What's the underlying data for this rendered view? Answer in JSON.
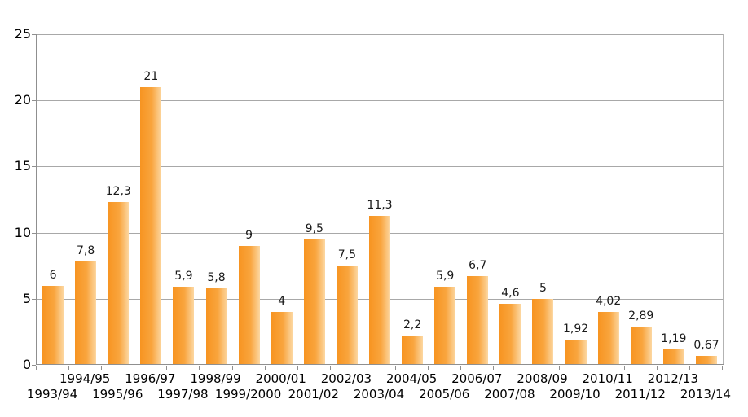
{
  "chart_data": {
    "type": "bar",
    "title": "",
    "xlabel": "",
    "ylabel": "",
    "categories": [
      "1993/94",
      "1994/95",
      "1995/96",
      "1996/97",
      "1997/98",
      "1998/99",
      "1999/2000",
      "2000/01",
      "2001/02",
      "2002/03",
      "2003/04",
      "2004/05",
      "2005/06",
      "2006/07",
      "2007/08",
      "2008/09",
      "2009/10",
      "2010/11",
      "2011/12",
      "2012/13",
      "2013/14"
    ],
    "values": [
      6,
      7.8,
      12.3,
      21,
      5.9,
      5.8,
      9,
      4,
      9.5,
      7.5,
      11.3,
      2.2,
      5.9,
      6.7,
      4.6,
      5,
      1.92,
      4.02,
      2.89,
      1.19,
      0.67
    ],
    "value_labels": [
      "6",
      "7,8",
      "12,3",
      "21",
      "5,9",
      "5,8",
      "9",
      "4",
      "9,5",
      "7,5",
      "11,3",
      "2,2",
      "5,9",
      "6,7",
      "4,6",
      "5",
      "1,92",
      "4,02",
      "2,89",
      "1,19",
      "0,67"
    ],
    "ylim": [
      0,
      25
    ],
    "yticks": [
      "0",
      "5",
      "10",
      "15",
      "20",
      "25"
    ],
    "ytick_values": [
      0,
      5,
      10,
      15,
      20,
      25
    ],
    "grid": true,
    "legend": false,
    "decimal_separator": ",",
    "colors": {
      "bar_gradient_start": "#f79421",
      "bar_gradient_mid": "#f9a53e",
      "bar_gradient_end": "#fcd7a1",
      "gridline": "#a8a8a8",
      "axis": "#8f8f8f",
      "value_label": "#1a1a1a",
      "axis_label": "#000000",
      "background": "#ffffff"
    }
  }
}
